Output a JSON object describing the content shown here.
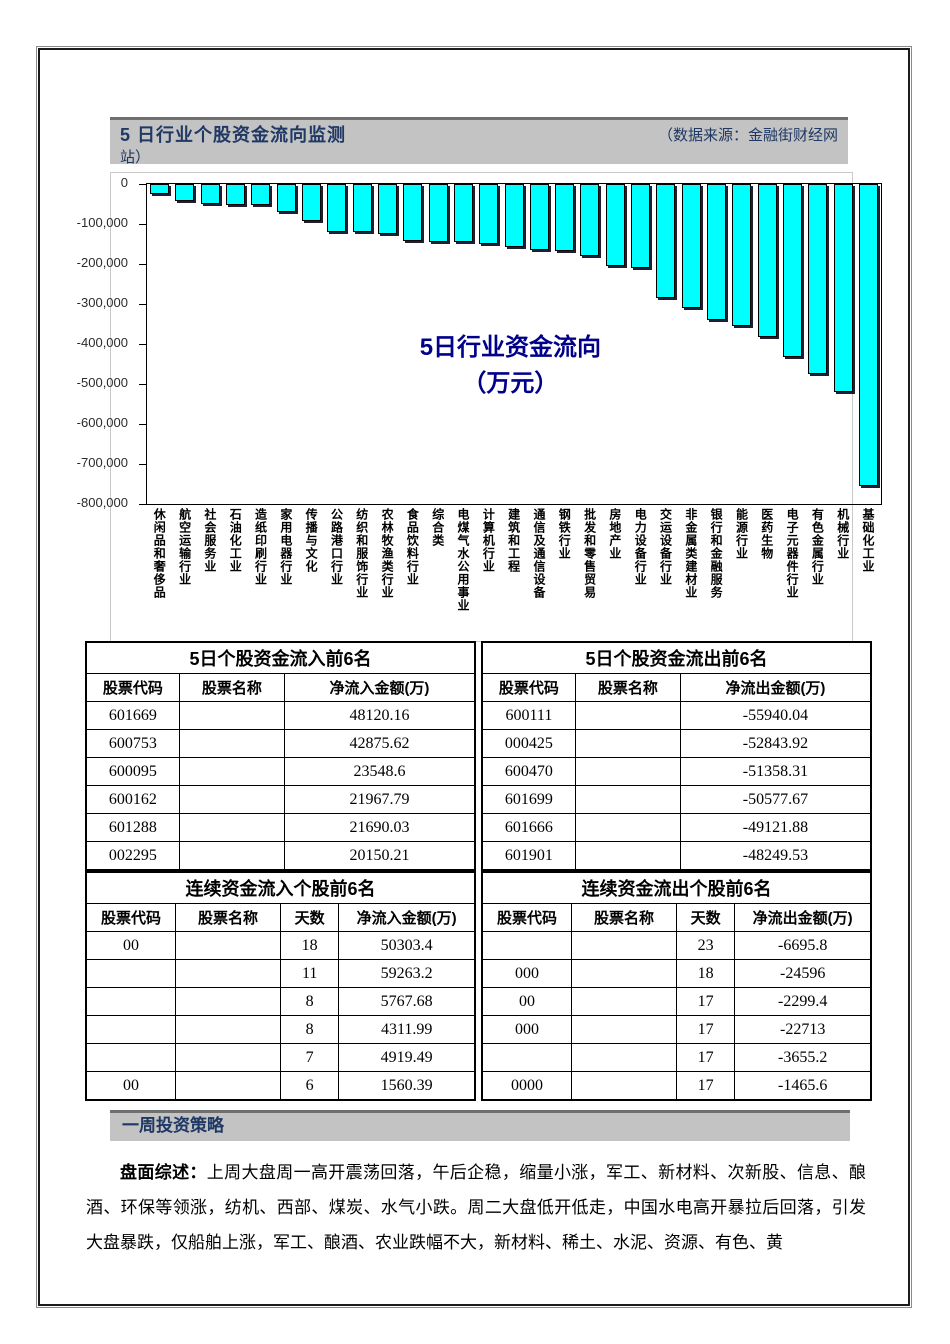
{
  "header": {
    "title": "5 日行业个股资金流向监测",
    "source_line1": "（数据来源：金融街财经网",
    "source_line2": "站）"
  },
  "chart_data": {
    "type": "bar",
    "title_line1": "5日行业资金流向",
    "title_line2": "（万元）",
    "unit": "万元",
    "categories": [
      "休闲品和奢侈品",
      "航空运输行业",
      "社会服务业",
      "石油化工业",
      "造纸印刷行业",
      "家用电器行业",
      "传播与文化",
      "公路港口行业",
      "纺织和服饰行业",
      "农林牧渔类行业",
      "食品饮料行业",
      "综合类",
      "电煤气水公用事业",
      "计算机行业",
      "建筑和工程",
      "通信及通信设备",
      "钢铁行业",
      "批发和零售贸易",
      "房地产业",
      "电力设备行业",
      "交运设备行业",
      "非金属类建材业",
      "银行和金融服务",
      "能源行业",
      "医药生物",
      "电子元器件行业",
      "有色金属行业",
      "机械行业",
      "基础化工业"
    ],
    "values": [
      -25000,
      -43000,
      -50000,
      -53000,
      -53000,
      -71000,
      -92000,
      -119000,
      -121000,
      -125000,
      -142000,
      -144000,
      -146000,
      -150000,
      -157000,
      -165000,
      -167000,
      -179000,
      -204000,
      -210000,
      -285000,
      -309000,
      -340000,
      -354000,
      -383000,
      -432000,
      -476000,
      -520000,
      -755000
    ],
    "ylim": [
      -800000,
      0
    ],
    "ytick_interval": 100000,
    "ytick_labels": [
      "0",
      "-100,000",
      "-200,000",
      "-300,000",
      "-400,000",
      "-500,000",
      "-600,000",
      "-700,000",
      "-800,000"
    ],
    "bar_color": "#00ffff",
    "grid": false,
    "legend": "none"
  },
  "tables": {
    "inflow5": {
      "title": "5日个股资金流入前6名",
      "headers": [
        "股票代码",
        "股票名称",
        "净流入金额(万)"
      ],
      "rows": [
        [
          "601669",
          "",
          "48120.16"
        ],
        [
          "600753",
          "",
          "42875.62"
        ],
        [
          "600095",
          "",
          "23548.6"
        ],
        [
          "600162",
          "",
          "21967.79"
        ],
        [
          "601288",
          "",
          "21690.03"
        ],
        [
          "002295",
          "",
          "20150.21"
        ]
      ]
    },
    "outflow5": {
      "title": "5日个股资金流出前6名",
      "headers": [
        "股票代码",
        "股票名称",
        "净流出金额(万)"
      ],
      "rows": [
        [
          "600111",
          "",
          "-55940.04"
        ],
        [
          "000425",
          "",
          "-52843.92"
        ],
        [
          "600470",
          "",
          "-51358.31"
        ],
        [
          "601699",
          "",
          "-50577.67"
        ],
        [
          "601666",
          "",
          "-49121.88"
        ],
        [
          "601901",
          "",
          "-48249.53"
        ]
      ]
    },
    "inflow_cont": {
      "title": "连续资金流入个股前6名",
      "headers": [
        "股票代码",
        "股票名称",
        "天数",
        "净流入金额(万)"
      ],
      "rows": [
        [
          "00",
          "",
          "18",
          "50303.4"
        ],
        [
          "",
          "",
          "11",
          "59263.2"
        ],
        [
          "",
          "",
          "8",
          "5767.68"
        ],
        [
          "",
          "",
          "8",
          "4311.99"
        ],
        [
          "",
          "",
          "7",
          "4919.49"
        ],
        [
          "00",
          "",
          "6",
          "1560.39"
        ]
      ]
    },
    "outflow_cont": {
      "title": "连续资金流出个股前6名",
      "headers": [
        "股票代码",
        "股票名称",
        "天数",
        "净流出金额(万)"
      ],
      "rows": [
        [
          "",
          "",
          "23",
          "-6695.8"
        ],
        [
          "000",
          "",
          "18",
          "-24596"
        ],
        [
          "00",
          "",
          "17",
          "-2299.4"
        ],
        [
          "000",
          "",
          "17",
          "-22713"
        ],
        [
          "",
          "",
          "17",
          "-3655.2"
        ],
        [
          "0000",
          "",
          "17",
          "-1465.6"
        ]
      ]
    }
  },
  "strategy": {
    "section_title": "一周投资策略",
    "lead": "盘面综述：",
    "body": "上周大盘周一高开震荡回落，午后企稳，缩量小涨，军工、新材料、次新股、信息、酿酒、环保等领涨，纺机、西部、煤炭、水气小跌。周二大盘低开低走，中国水电高开暴拉后回落，引发大盘暴跌，仅船舶上涨，军工、酿酒、农业跌幅不大，新材料、稀土、水泥、资源、有色、黄"
  },
  "colors": {
    "bar_cyan": "#00ffff",
    "section_bar_gray": "#c3c3c3",
    "navy_text": "#1f3864",
    "chart_title_blue": "#00008b"
  }
}
